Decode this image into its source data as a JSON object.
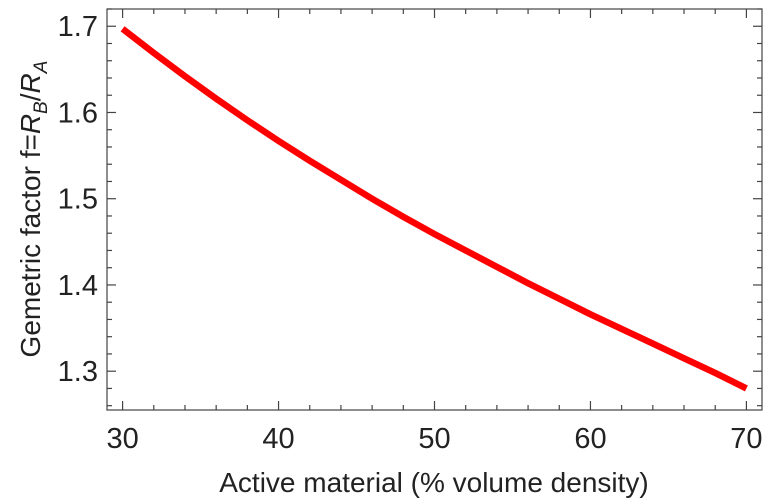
{
  "chart_data": {
    "type": "line",
    "title": "",
    "xlabel": "Active material (% volume density)",
    "ylabel": {
      "prefix": "Gemetric factor f=",
      "var1": "R",
      "sub1": "B",
      "slash": "/",
      "var2": "R",
      "sub2": "A"
    },
    "xlim": [
      29,
      71
    ],
    "ylim": [
      1.255,
      1.72
    ],
    "xticks": [
      30,
      40,
      50,
      60,
      70
    ],
    "xtick_labels": [
      "30",
      "40",
      "50",
      "60",
      "70"
    ],
    "yticks": [
      1.3,
      1.4,
      1.5,
      1.6,
      1.7
    ],
    "ytick_labels": [
      "1.3",
      "1.4",
      "1.5",
      "1.6",
      "1.7"
    ],
    "grid": false,
    "legend": "none",
    "series": [
      {
        "color": "#ff0000",
        "x": [
          30,
          32,
          34,
          36,
          38,
          40,
          42,
          44,
          46,
          48,
          50,
          52,
          54,
          56,
          58,
          60,
          62,
          64,
          66,
          68,
          70
        ],
        "y": [
          1.697,
          1.669,
          1.642,
          1.616,
          1.591,
          1.567,
          1.544,
          1.522,
          1.5,
          1.479,
          1.459,
          1.44,
          1.421,
          1.402,
          1.384,
          1.366,
          1.349,
          1.332,
          1.315,
          1.298,
          1.28
        ]
      }
    ]
  }
}
